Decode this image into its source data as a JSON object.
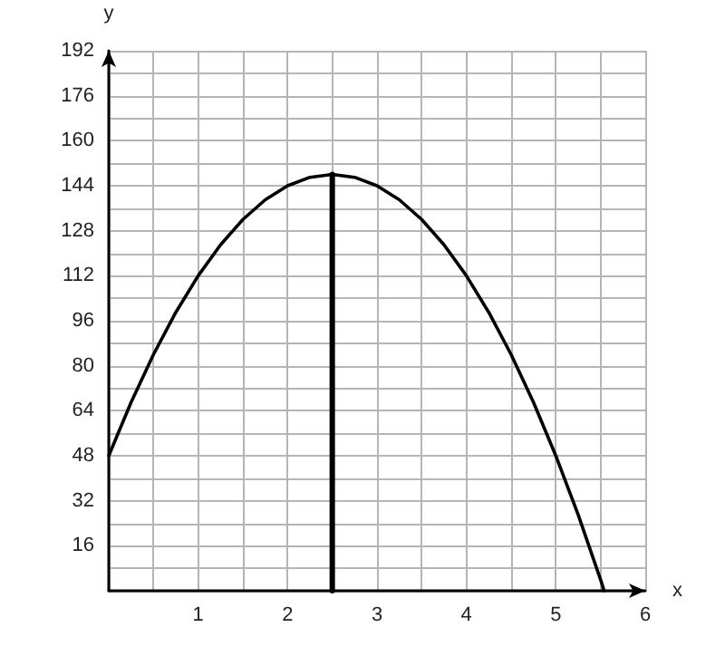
{
  "chart_data": {
    "type": "line",
    "xlabel": "x",
    "ylabel": "y",
    "xlim": [
      0,
      6
    ],
    "ylim": [
      0,
      192
    ],
    "xticks": [
      {
        "value": 0,
        "label": null
      },
      {
        "value": 0.5,
        "label": null
      },
      1,
      {
        "value": 1.5,
        "label": null
      },
      2,
      {
        "value": 2.5,
        "label": null
      },
      3,
      {
        "value": 3.5,
        "label": null
      },
      4,
      {
        "value": 4.5,
        "label": null
      },
      5,
      {
        "value": 5.5,
        "label": null
      },
      6
    ],
    "yticks": [
      {
        "value": 0,
        "label": null
      },
      {
        "value": 8,
        "label": null
      },
      16,
      {
        "value": 24,
        "label": null
      },
      32,
      {
        "value": 40,
        "label": null
      },
      48,
      {
        "value": 56,
        "label": null
      },
      64,
      {
        "value": 72,
        "label": null
      },
      80,
      {
        "value": 88,
        "label": null
      },
      96,
      {
        "value": 104,
        "label": null
      },
      112,
      {
        "value": 120,
        "label": null
      },
      128,
      {
        "value": 136,
        "label": null
      },
      144,
      {
        "value": 152,
        "label": null
      },
      160,
      {
        "value": 168,
        "label": null
      },
      176,
      {
        "value": 184,
        "label": null
      },
      192
    ],
    "grid": true,
    "marker": "none",
    "line_style": "solid",
    "series": [
      {
        "color": "#000000",
        "x": [
          0,
          0.25,
          0.5,
          0.75,
          1,
          1.25,
          1.5,
          1.75,
          2,
          2.25,
          2.5,
          2.75,
          3,
          3.25,
          3.5,
          3.75,
          4,
          4.25,
          4.5,
          4.75,
          5,
          5.25,
          5.5,
          5.54
        ],
        "values": [
          48,
          67,
          84,
          99,
          112,
          123,
          132,
          139,
          144,
          147,
          148,
          147,
          144,
          139,
          132,
          123,
          112,
          99,
          84,
          67,
          48,
          27,
          4,
          0
        ]
      },
      {
        "color": "#000000",
        "x": [
          2.5,
          2.5
        ],
        "values": [
          0,
          148
        ]
      }
    ]
  }
}
